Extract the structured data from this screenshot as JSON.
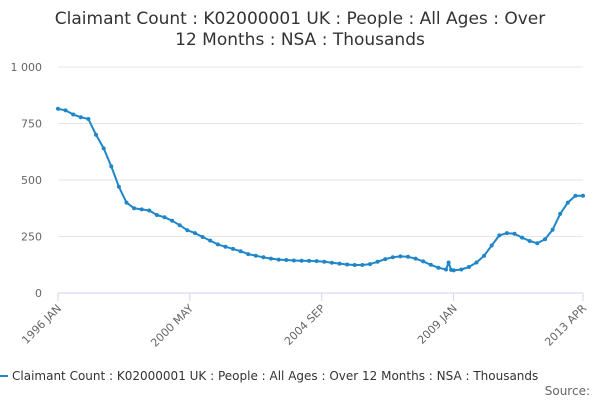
{
  "colors": {
    "series": "#1f86c7",
    "grid": "#e6e6e6",
    "axis": "#ccd6eb",
    "text": "#333333",
    "tick_text": "#666666"
  },
  "chart_data": {
    "type": "line",
    "title_line1": "Claimant Count : K02000001 UK : People : All Ages : Over",
    "title_line2": "12 Months : NSA : Thousands",
    "xlabel": "",
    "ylabel": "",
    "x_range": [
      "1996-01",
      "2013-04"
    ],
    "ylim": [
      0,
      1000
    ],
    "y_ticks": [
      0,
      250,
      500,
      750,
      1000
    ],
    "y_tick_labels": [
      "0",
      "250",
      "500",
      "750",
      "1 000"
    ],
    "x_ticks": [
      "1996-01",
      "2000-05",
      "2004-09",
      "2009-01",
      "2013-04"
    ],
    "x_tick_labels": [
      "1996 JAN",
      "2000 MAY",
      "2004 SEP",
      "2009 JAN",
      "2013 APR"
    ],
    "grid": "horizontal",
    "legend_position": "bottom",
    "series": [
      {
        "name": "Claimant Count : K02000001 UK : People : All Ages : Over 12 Months : NSA : Thousands",
        "points": [
          [
            "1996-01",
            815
          ],
          [
            "1996-04",
            808
          ],
          [
            "1996-07",
            790
          ],
          [
            "1996-10",
            778
          ],
          [
            "1997-01",
            770
          ],
          [
            "1997-04",
            700
          ],
          [
            "1997-07",
            640
          ],
          [
            "1997-10",
            560
          ],
          [
            "1998-01",
            470
          ],
          [
            "1998-04",
            400
          ],
          [
            "1998-07",
            375
          ],
          [
            "1998-10",
            370
          ],
          [
            "1999-01",
            365
          ],
          [
            "1999-04",
            345
          ],
          [
            "1999-07",
            335
          ],
          [
            "1999-10",
            320
          ],
          [
            "2000-01",
            300
          ],
          [
            "2000-04",
            278
          ],
          [
            "2000-07",
            265
          ],
          [
            "2000-10",
            248
          ],
          [
            "2001-01",
            232
          ],
          [
            "2001-04",
            215
          ],
          [
            "2001-07",
            205
          ],
          [
            "2001-10",
            195
          ],
          [
            "2002-01",
            185
          ],
          [
            "2002-04",
            172
          ],
          [
            "2002-07",
            165
          ],
          [
            "2002-10",
            158
          ],
          [
            "2003-01",
            152
          ],
          [
            "2003-04",
            148
          ],
          [
            "2003-07",
            146
          ],
          [
            "2003-10",
            144
          ],
          [
            "2004-01",
            143
          ],
          [
            "2004-04",
            142
          ],
          [
            "2004-07",
            141
          ],
          [
            "2004-10",
            138
          ],
          [
            "2005-01",
            134
          ],
          [
            "2005-04",
            130
          ],
          [
            "2005-07",
            126
          ],
          [
            "2005-10",
            124
          ],
          [
            "2006-01",
            124
          ],
          [
            "2006-04",
            128
          ],
          [
            "2006-07",
            138
          ],
          [
            "2006-10",
            150
          ],
          [
            "2007-01",
            158
          ],
          [
            "2007-04",
            162
          ],
          [
            "2007-07",
            160
          ],
          [
            "2007-10",
            152
          ],
          [
            "2008-01",
            140
          ],
          [
            "2008-04",
            125
          ],
          [
            "2008-07",
            112
          ],
          [
            "2008-10",
            104
          ],
          [
            "2008-11",
            135
          ],
          [
            "2008-12",
            102
          ],
          [
            "2009-01",
            100
          ],
          [
            "2009-04",
            104
          ],
          [
            "2009-07",
            115
          ],
          [
            "2009-10",
            135
          ],
          [
            "2010-01",
            165
          ],
          [
            "2010-04",
            210
          ],
          [
            "2010-07",
            255
          ],
          [
            "2010-10",
            265
          ],
          [
            "2011-01",
            262
          ],
          [
            "2011-04",
            245
          ],
          [
            "2011-07",
            230
          ],
          [
            "2011-10",
            220
          ],
          [
            "2012-01",
            238
          ],
          [
            "2012-04",
            280
          ],
          [
            "2012-07",
            350
          ],
          [
            "2012-10",
            400
          ],
          [
            "2013-01",
            430
          ],
          [
            "2013-04",
            430
          ]
        ]
      }
    ]
  },
  "source_label": "Source:"
}
